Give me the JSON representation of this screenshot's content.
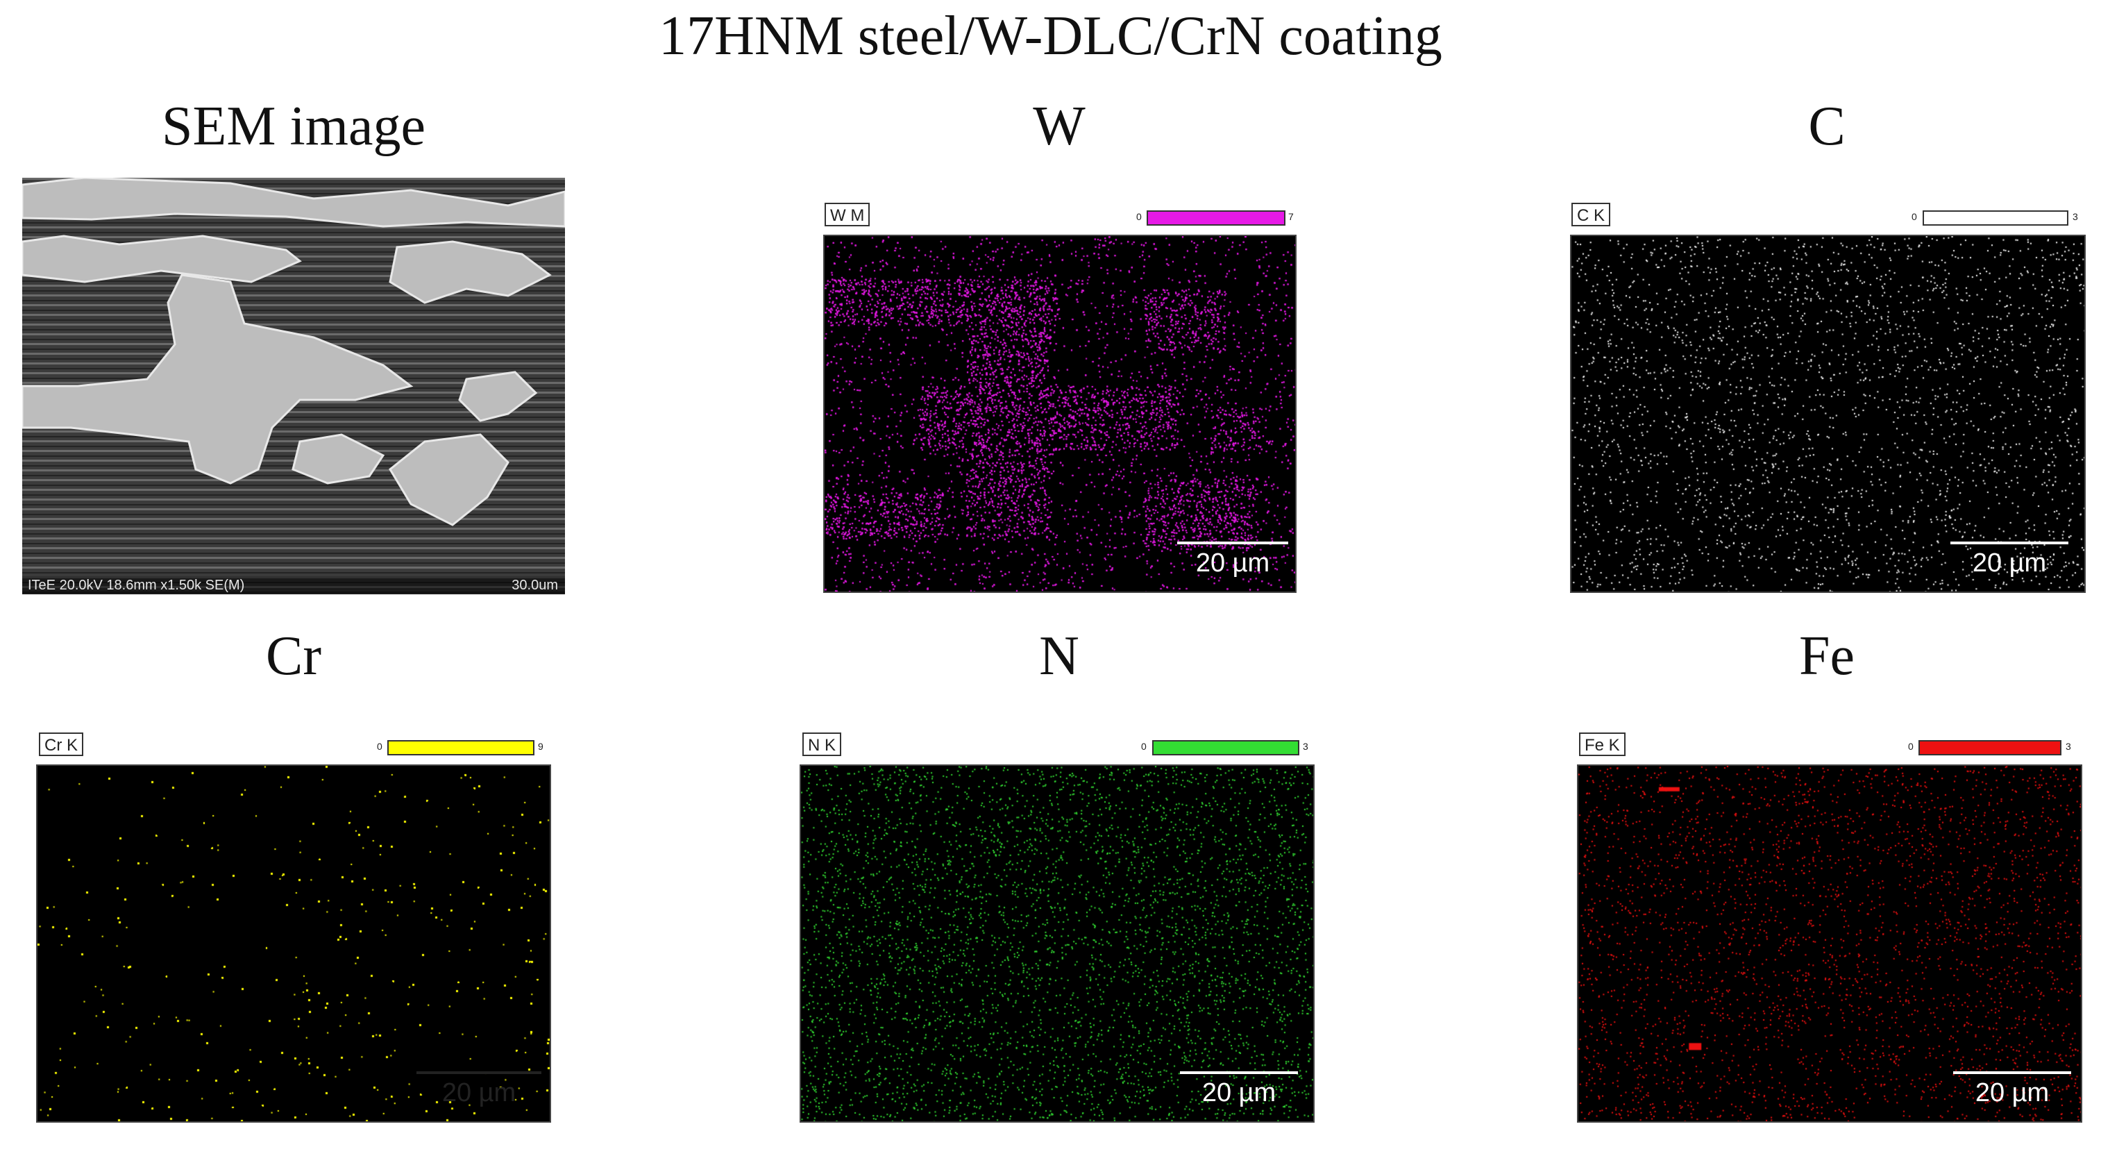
{
  "figure": {
    "title": "17HNM steel/W-DLC/CrN coating"
  },
  "sem": {
    "title": "SEM image",
    "info": "ITeE 20.0kV 18.6mm x1.50k SE(M)",
    "scale": "30.0um"
  },
  "maps": [
    {
      "id": "w",
      "title": "W",
      "label": "W M",
      "cbar_min": "0",
      "cbar_max": "7",
      "color": "#e619e6",
      "scale": "20 µm",
      "pattern": "dense-bands"
    },
    {
      "id": "c",
      "title": "C",
      "label": "C K",
      "cbar_min": "0",
      "cbar_max": "3",
      "color": "#ffffff",
      "scale": "20 µm",
      "pattern": "sparse"
    },
    {
      "id": "cr",
      "title": "Cr",
      "label": "Cr K",
      "cbar_min": "0",
      "cbar_max": "9",
      "color": "#ffff00",
      "scale": "20 µm",
      "pattern": "inverse-bands"
    },
    {
      "id": "n",
      "title": "N",
      "label": "N K",
      "cbar_min": "0",
      "cbar_max": "3",
      "color": "#33dd33",
      "scale": "20 µm",
      "pattern": "medium"
    },
    {
      "id": "fe",
      "title": "Fe",
      "label": "Fe K",
      "cbar_min": "0",
      "cbar_max": "3",
      "color": "#ee1111",
      "scale": "20 µm",
      "pattern": "sparse-red"
    }
  ]
}
